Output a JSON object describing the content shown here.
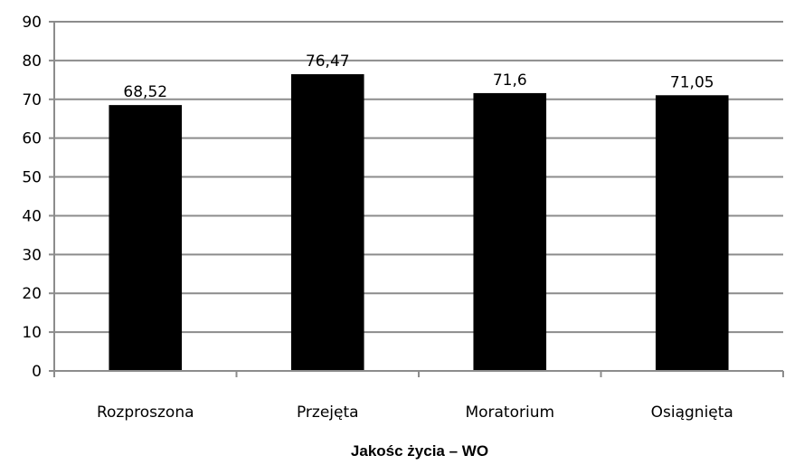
{
  "chart_data": {
    "type": "bar",
    "categories": [
      "Rozproszona",
      "Przejęta",
      "Moratorium",
      "Osiągnięta"
    ],
    "values": [
      68.52,
      76.47,
      71.6,
      71.05
    ],
    "data_labels": [
      "68,52",
      "76,47",
      "71,6",
      "71,05"
    ],
    "xlabel": "Jakośc życia  – WO",
    "ylabel": "",
    "ylim": [
      0,
      90
    ],
    "yticks": [
      0,
      10,
      20,
      30,
      40,
      50,
      60,
      70,
      80,
      90
    ],
    "grid": true,
    "bar_color": "#000000",
    "grid_color": "#8c8c8c"
  }
}
